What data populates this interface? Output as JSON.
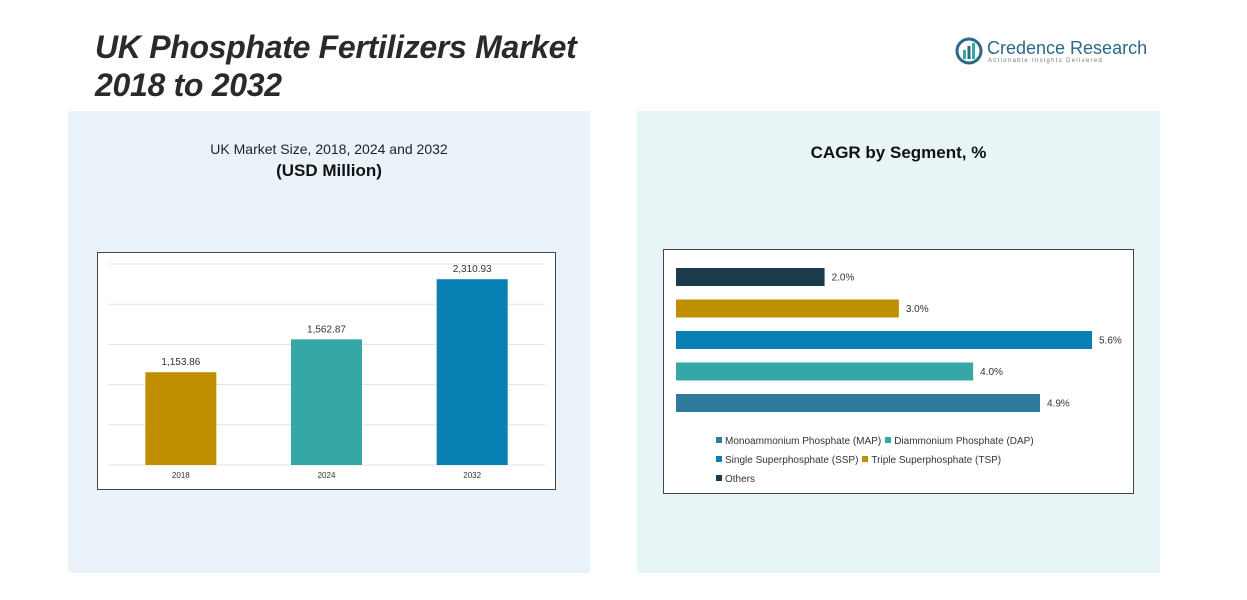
{
  "page": {
    "title_line1": "UK Phosphate Fertilizers Market",
    "title_line2": "2018 to 2032",
    "logo_name": "Credence Research",
    "logo_tagline": "Actionable Insights Delivered",
    "logo_icon": "credence-logo-icon"
  },
  "chart_data": [
    {
      "type": "bar",
      "title": "UK Market Size, 2018, 2024 and 2032",
      "subtitle": "(USD Million)",
      "categories": [
        "2018",
        "2024",
        "2032"
      ],
      "values": [
        1153.86,
        1562.87,
        2310.93
      ],
      "value_labels": [
        "1,153.86",
        "1,562.87",
        "2,310.93"
      ],
      "colors": [
        "#bf8f00",
        "#35a7a6",
        "#0880b4"
      ],
      "ylim": [
        0,
        2500
      ],
      "grid": true
    },
    {
      "type": "bar",
      "orientation": "horizontal",
      "title": "CAGR by Segment, %",
      "categories": [
        "Others",
        "Triple Superphosphate (TSP)",
        "Single Superphosphate (SSP)",
        "Diammonium Phosphate (DAP)",
        "Monoammonium Phosphate (MAP)"
      ],
      "values": [
        2.0,
        3.0,
        5.6,
        4.0,
        4.9
      ],
      "value_labels": [
        "2.0%",
        "3.0%",
        "5.6%",
        "4.0%",
        "4.9%"
      ],
      "colors": [
        "#1b3a4b",
        "#bf8f00",
        "#0880b4",
        "#35a7a6",
        "#2d7a9a"
      ],
      "xlim": [
        0,
        5.6
      ],
      "legend": {
        "placement": "bottom",
        "rows": [
          [
            {
              "label": "Monoammonium Phosphate (MAP)",
              "color": "#2d7a9a"
            },
            {
              "label": "Diammonium Phosphate (DAP)",
              "color": "#35a7a6"
            }
          ],
          [
            {
              "label": "Single Superphosphate (SSP)",
              "color": "#0880b4"
            },
            {
              "label": "Triple Superphosphate (TSP)",
              "color": "#bf8f00"
            }
          ],
          [
            {
              "label": "Others",
              "color": "#1b3a4b"
            }
          ]
        ]
      }
    }
  ]
}
